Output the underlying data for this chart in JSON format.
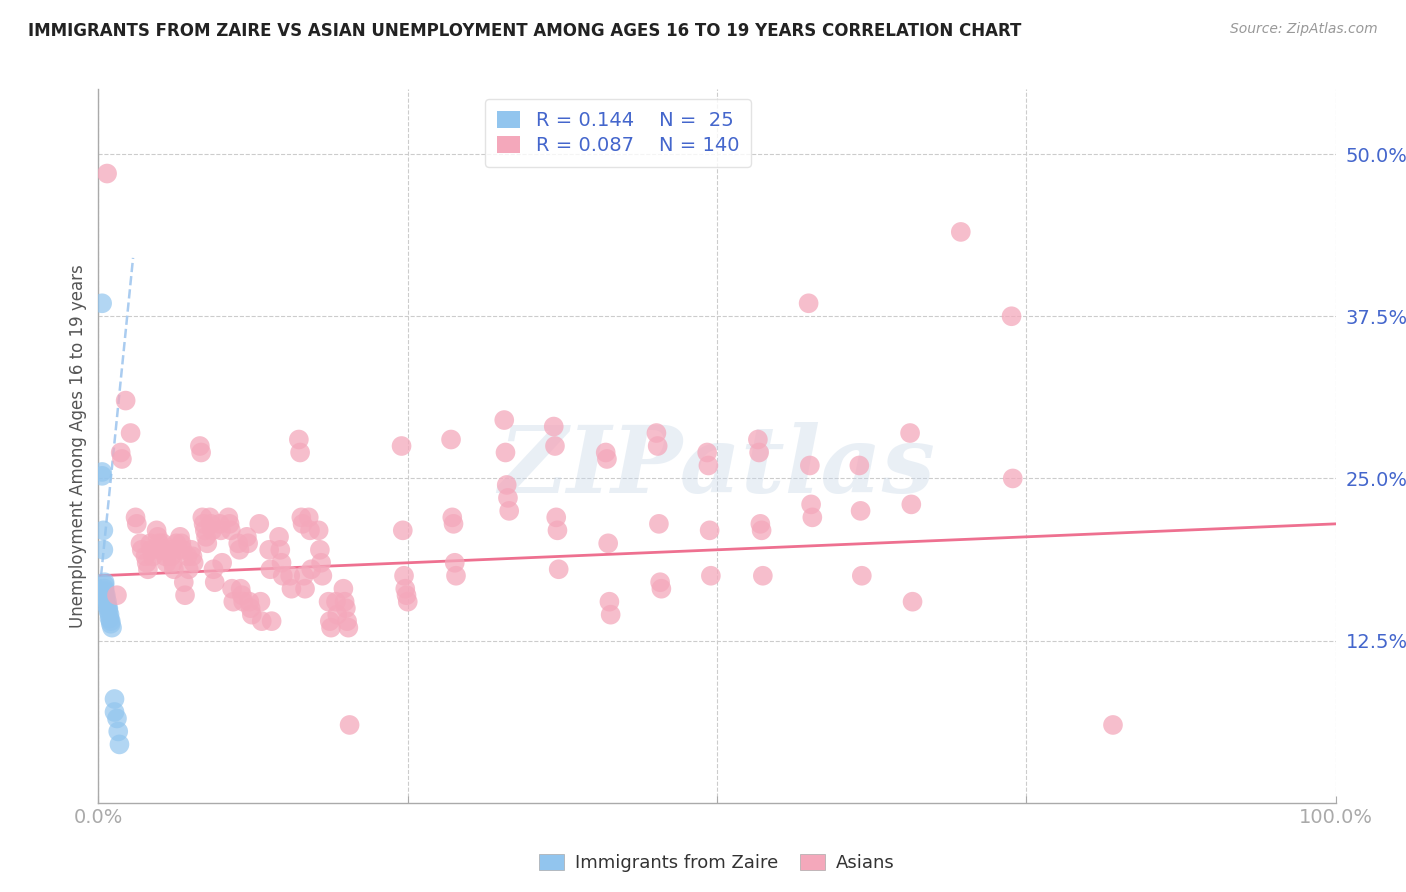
{
  "title": "IMMIGRANTS FROM ZAIRE VS ASIAN UNEMPLOYMENT AMONG AGES 16 TO 19 YEARS CORRELATION CHART",
  "source": "Source: ZipAtlas.com",
  "ylabel": "Unemployment Among Ages 16 to 19 years",
  "xlim": [
    0.0,
    1.0
  ],
  "ylim": [
    0.0,
    0.55
  ],
  "ytick_labels": [
    "12.5%",
    "25.0%",
    "37.5%",
    "50.0%"
  ],
  "ytick_positions": [
    0.125,
    0.25,
    0.375,
    0.5
  ],
  "legend_r_blue": "0.144",
  "legend_n_blue": "25",
  "legend_r_pink": "0.087",
  "legend_n_pink": "140",
  "legend_label_blue": "Immigrants from Zaire",
  "legend_label_pink": "Asians",
  "blue_color": "#92C5EE",
  "pink_color": "#F4A8BB",
  "trend_blue_color": "#AACCF0",
  "trend_pink_color": "#EE7090",
  "watermark": "ZIPatlas",
  "blue_points": [
    [
      0.003,
      0.385
    ],
    [
      0.003,
      0.255
    ],
    [
      0.003,
      0.252
    ],
    [
      0.004,
      0.21
    ],
    [
      0.004,
      0.195
    ],
    [
      0.005,
      0.17
    ],
    [
      0.005,
      0.168
    ],
    [
      0.005,
      0.165
    ],
    [
      0.005,
      0.163
    ],
    [
      0.006,
      0.16
    ],
    [
      0.006,
      0.158
    ],
    [
      0.007,
      0.155
    ],
    [
      0.007,
      0.152
    ],
    [
      0.008,
      0.15
    ],
    [
      0.008,
      0.148
    ],
    [
      0.009,
      0.145
    ],
    [
      0.009,
      0.142
    ],
    [
      0.01,
      0.14
    ],
    [
      0.01,
      0.138
    ],
    [
      0.011,
      0.135
    ],
    [
      0.013,
      0.08
    ],
    [
      0.013,
      0.07
    ],
    [
      0.015,
      0.065
    ],
    [
      0.016,
      0.055
    ],
    [
      0.017,
      0.045
    ]
  ],
  "pink_points": [
    [
      0.007,
      0.485
    ],
    [
      0.015,
      0.16
    ],
    [
      0.018,
      0.27
    ],
    [
      0.019,
      0.265
    ],
    [
      0.022,
      0.31
    ],
    [
      0.026,
      0.285
    ],
    [
      0.03,
      0.22
    ],
    [
      0.031,
      0.215
    ],
    [
      0.034,
      0.2
    ],
    [
      0.035,
      0.195
    ],
    [
      0.038,
      0.19
    ],
    [
      0.039,
      0.185
    ],
    [
      0.04,
      0.18
    ],
    [
      0.042,
      0.2
    ],
    [
      0.043,
      0.195
    ],
    [
      0.044,
      0.19
    ],
    [
      0.047,
      0.21
    ],
    [
      0.048,
      0.205
    ],
    [
      0.049,
      0.2
    ],
    [
      0.05,
      0.195
    ],
    [
      0.052,
      0.2
    ],
    [
      0.053,
      0.195
    ],
    [
      0.054,
      0.19
    ],
    [
      0.055,
      0.185
    ],
    [
      0.058,
      0.195
    ],
    [
      0.059,
      0.19
    ],
    [
      0.06,
      0.185
    ],
    [
      0.061,
      0.18
    ],
    [
      0.063,
      0.2
    ],
    [
      0.064,
      0.195
    ],
    [
      0.066,
      0.205
    ],
    [
      0.067,
      0.2
    ],
    [
      0.068,
      0.195
    ],
    [
      0.069,
      0.17
    ],
    [
      0.07,
      0.16
    ],
    [
      0.072,
      0.19
    ],
    [
      0.073,
      0.18
    ],
    [
      0.075,
      0.195
    ],
    [
      0.076,
      0.19
    ],
    [
      0.077,
      0.185
    ],
    [
      0.082,
      0.275
    ],
    [
      0.083,
      0.27
    ],
    [
      0.084,
      0.22
    ],
    [
      0.085,
      0.215
    ],
    [
      0.086,
      0.21
    ],
    [
      0.087,
      0.205
    ],
    [
      0.088,
      0.2
    ],
    [
      0.09,
      0.22
    ],
    [
      0.091,
      0.215
    ],
    [
      0.092,
      0.21
    ],
    [
      0.093,
      0.18
    ],
    [
      0.094,
      0.17
    ],
    [
      0.098,
      0.215
    ],
    [
      0.099,
      0.21
    ],
    [
      0.1,
      0.185
    ],
    [
      0.105,
      0.22
    ],
    [
      0.106,
      0.215
    ],
    [
      0.107,
      0.21
    ],
    [
      0.108,
      0.165
    ],
    [
      0.109,
      0.155
    ],
    [
      0.113,
      0.2
    ],
    [
      0.114,
      0.195
    ],
    [
      0.115,
      0.165
    ],
    [
      0.116,
      0.16
    ],
    [
      0.117,
      0.155
    ],
    [
      0.12,
      0.205
    ],
    [
      0.121,
      0.2
    ],
    [
      0.122,
      0.155
    ],
    [
      0.123,
      0.15
    ],
    [
      0.124,
      0.145
    ],
    [
      0.13,
      0.215
    ],
    [
      0.131,
      0.155
    ],
    [
      0.132,
      0.14
    ],
    [
      0.138,
      0.195
    ],
    [
      0.139,
      0.18
    ],
    [
      0.14,
      0.14
    ],
    [
      0.146,
      0.205
    ],
    [
      0.147,
      0.195
    ],
    [
      0.148,
      0.185
    ],
    [
      0.149,
      0.175
    ],
    [
      0.155,
      0.175
    ],
    [
      0.156,
      0.165
    ],
    [
      0.162,
      0.28
    ],
    [
      0.163,
      0.27
    ],
    [
      0.164,
      0.22
    ],
    [
      0.165,
      0.215
    ],
    [
      0.166,
      0.175
    ],
    [
      0.167,
      0.165
    ],
    [
      0.17,
      0.22
    ],
    [
      0.171,
      0.21
    ],
    [
      0.172,
      0.18
    ],
    [
      0.178,
      0.21
    ],
    [
      0.179,
      0.195
    ],
    [
      0.18,
      0.185
    ],
    [
      0.181,
      0.175
    ],
    [
      0.186,
      0.155
    ],
    [
      0.187,
      0.14
    ],
    [
      0.188,
      0.135
    ],
    [
      0.192,
      0.155
    ],
    [
      0.193,
      0.145
    ],
    [
      0.198,
      0.165
    ],
    [
      0.199,
      0.155
    ],
    [
      0.2,
      0.15
    ],
    [
      0.201,
      0.14
    ],
    [
      0.202,
      0.135
    ],
    [
      0.203,
      0.06
    ],
    [
      0.245,
      0.275
    ],
    [
      0.246,
      0.21
    ],
    [
      0.247,
      0.175
    ],
    [
      0.248,
      0.165
    ],
    [
      0.249,
      0.16
    ],
    [
      0.25,
      0.155
    ],
    [
      0.285,
      0.28
    ],
    [
      0.286,
      0.22
    ],
    [
      0.287,
      0.215
    ],
    [
      0.288,
      0.185
    ],
    [
      0.289,
      0.175
    ],
    [
      0.328,
      0.295
    ],
    [
      0.329,
      0.27
    ],
    [
      0.33,
      0.245
    ],
    [
      0.331,
      0.235
    ],
    [
      0.332,
      0.225
    ],
    [
      0.368,
      0.29
    ],
    [
      0.369,
      0.275
    ],
    [
      0.37,
      0.22
    ],
    [
      0.371,
      0.21
    ],
    [
      0.372,
      0.18
    ],
    [
      0.41,
      0.27
    ],
    [
      0.411,
      0.265
    ],
    [
      0.412,
      0.2
    ],
    [
      0.413,
      0.155
    ],
    [
      0.414,
      0.145
    ],
    [
      0.451,
      0.285
    ],
    [
      0.452,
      0.275
    ],
    [
      0.453,
      0.215
    ],
    [
      0.454,
      0.17
    ],
    [
      0.455,
      0.165
    ],
    [
      0.492,
      0.27
    ],
    [
      0.493,
      0.26
    ],
    [
      0.494,
      0.21
    ],
    [
      0.495,
      0.175
    ],
    [
      0.533,
      0.28
    ],
    [
      0.534,
      0.27
    ],
    [
      0.535,
      0.215
    ],
    [
      0.536,
      0.21
    ],
    [
      0.537,
      0.175
    ],
    [
      0.574,
      0.385
    ],
    [
      0.575,
      0.26
    ],
    [
      0.576,
      0.23
    ],
    [
      0.577,
      0.22
    ],
    [
      0.615,
      0.26
    ],
    [
      0.616,
      0.225
    ],
    [
      0.617,
      0.175
    ],
    [
      0.656,
      0.285
    ],
    [
      0.657,
      0.23
    ],
    [
      0.658,
      0.155
    ],
    [
      0.697,
      0.44
    ],
    [
      0.738,
      0.375
    ],
    [
      0.739,
      0.25
    ],
    [
      0.82,
      0.06
    ]
  ],
  "blue_trend_x": [
    0.0,
    0.028
  ],
  "blue_trend_y_start": 0.155,
  "blue_trend_y_end": 0.42,
  "pink_trend_x": [
    0.0,
    1.0
  ],
  "pink_trend_y_start": 0.175,
  "pink_trend_y_end": 0.215,
  "grid_color": "#CCCCCC",
  "background_color": "#FFFFFF",
  "title_fontsize": 12,
  "tick_label_color": "#4466CC",
  "legend_text_color": "#4466CC",
  "ylabel_color": "#555555"
}
